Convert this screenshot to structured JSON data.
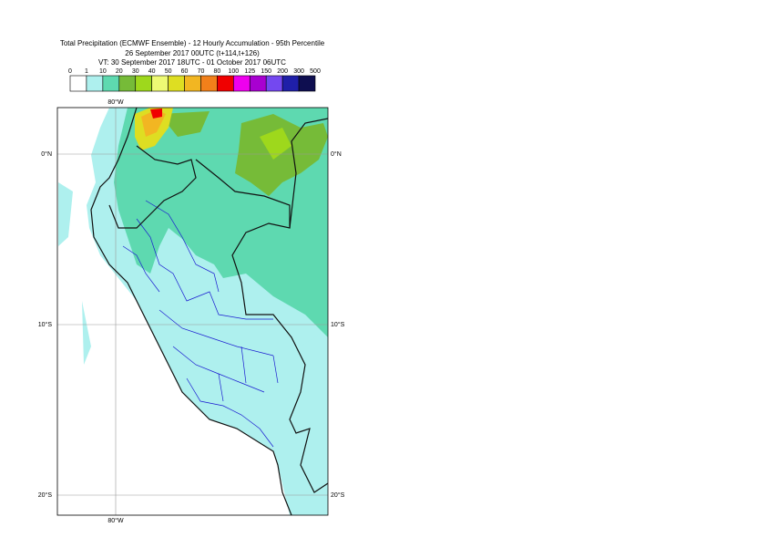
{
  "header": {
    "title": [
      "Total Precipitation (ECMWF Ensemble) - 12 Hourly Accumulation - 95th Percentile",
      "26 September 2017 00UTC (t+114,t+126)",
      "VT: 30 September 2017 18UTC - 01 October 2017 06UTC"
    ]
  },
  "legend": {
    "thresholds": [
      0,
      1,
      10,
      20,
      30,
      40,
      50,
      60,
      70,
      80,
      100,
      125,
      150,
      200,
      300,
      500
    ],
    "colors": [
      "#ffffff",
      "#aef0ee",
      "#5ed9b0",
      "#76bb38",
      "#9ed81c",
      "#eefa74",
      "#dede22",
      "#f2b622",
      "#f2801a",
      "#f00000",
      "#ee00ee",
      "#a800d0",
      "#7448f0",
      "#1f1fa8",
      "#0e0e50"
    ]
  },
  "map": {
    "lon_labels": [
      "80°W",
      "80°W"
    ],
    "lat_labels_left": [
      "0°N",
      "10°S",
      "20°S"
    ],
    "lat_labels_right": [
      "0°N",
      "10°S",
      "20°S"
    ]
  }
}
